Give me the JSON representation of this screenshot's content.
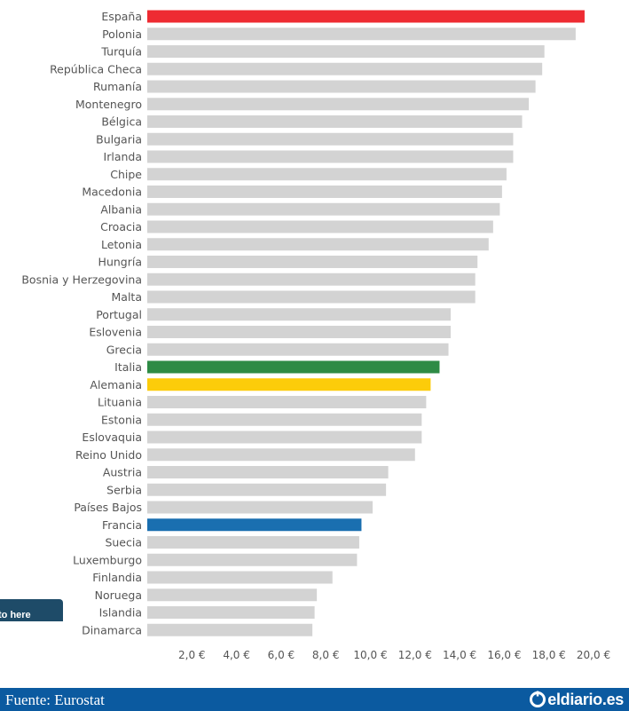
{
  "chart_data": {
    "type": "bar",
    "orientation": "horizontal",
    "categories": [
      "España",
      "Polonia",
      "Turquía",
      "República Checa",
      "Rumanía",
      "Montenegro",
      "Bélgica",
      "Bulgaria",
      "Irlanda",
      "Chipe",
      "Macedonia",
      "Albania",
      "Croacia",
      "Letonia",
      "Hungría",
      "Bosnia y Herzegovina",
      "Malta",
      "Portugal",
      "Eslovenia",
      "Grecia",
      "Italia",
      "Alemania",
      "Lituania",
      "Estonia",
      "Eslovaquia",
      "Reino Unido",
      "Austria",
      "Serbia",
      "Países Bajos",
      "Francia",
      "Suecia",
      "Luxemburgo",
      "Finlandia",
      "Noruega",
      "Islandia",
      "Dinamarca"
    ],
    "values": [
      19.6,
      19.2,
      17.8,
      17.7,
      17.4,
      17.1,
      16.8,
      16.4,
      16.4,
      16.1,
      15.9,
      15.8,
      15.5,
      15.3,
      14.8,
      14.7,
      14.7,
      13.6,
      13.6,
      13.5,
      13.1,
      12.7,
      12.5,
      12.3,
      12.3,
      12.0,
      10.8,
      10.7,
      10.1,
      9.6,
      9.5,
      9.4,
      8.3,
      7.6,
      7.5,
      7.4
    ],
    "highlight_colors": {
      "España": "#ee2b32",
      "Italia": "#2e8b45",
      "Alemania": "#fccc0a",
      "Francia": "#1a6fb0"
    },
    "default_color": "#d3d3d3",
    "xticks": [
      "2,0 €",
      "4,0 €",
      "6,0 €",
      "8,0 €",
      "10,0 €",
      "12,0 €",
      "14,0 €",
      "16,0 €",
      "18,0 €",
      "20,0 €"
    ],
    "xlim": [
      0,
      20
    ],
    "grid": false,
    "legend": "none"
  },
  "tooltip_text": "to here",
  "footer": {
    "source": "Fuente: Eurostat",
    "brand": "eldiario.es"
  },
  "colors": {
    "footer_bg": "#0b5aa0",
    "tooltip_bg": "#1e4b68"
  }
}
